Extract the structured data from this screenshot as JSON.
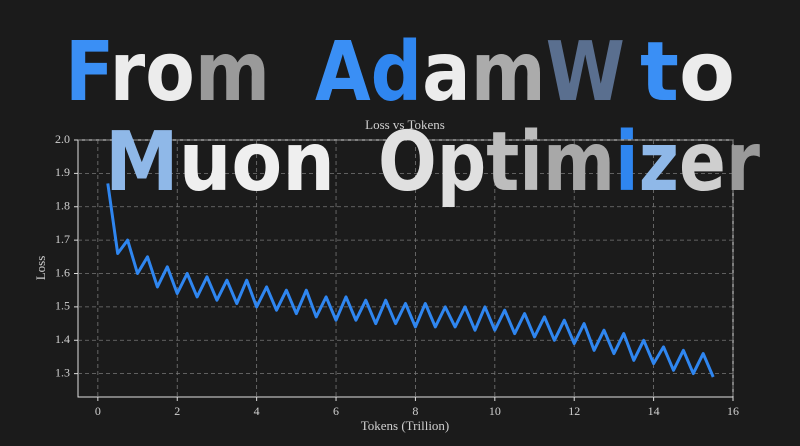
{
  "headline": [
    [
      [
        {
          "text": "F",
          "color": "#3a8ff5"
        },
        {
          "text": "ro",
          "color": "#ececec"
        },
        {
          "text": "m",
          "color": "#9a9a9a"
        }
      ],
      [
        {
          "text": "A",
          "color": "#3a8ff5"
        },
        {
          "text": "d",
          "color": "#2f86f0"
        },
        {
          "text": "a",
          "color": "#ececec"
        },
        {
          "text": "m",
          "color": "#ababab"
        },
        {
          "text": "W",
          "color": "#5a6f8f"
        }
      ],
      [
        {
          "text": "t",
          "color": "#3a8ff5"
        },
        {
          "text": "o",
          "color": "#ececec"
        }
      ]
    ],
    [
      [
        {
          "text": "M",
          "color": "#8fb8e8"
        },
        {
          "text": "uon",
          "color": "#efefef"
        }
      ],
      [
        {
          "text": "Op",
          "color": "#e0e0e0"
        },
        {
          "text": "ti",
          "color": "#bdbdbd"
        },
        {
          "text": "m",
          "color": "#a8a8a8"
        },
        {
          "text": "i",
          "color": "#2f86f0"
        },
        {
          "text": "z",
          "color": "#8fb8e8"
        },
        {
          "text": "e",
          "color": "#cfcfcf"
        },
        {
          "text": "r",
          "color": "#9a9a9a"
        }
      ]
    ]
  ],
  "chart_data": {
    "type": "line",
    "title": "Loss vs Tokens",
    "x_label": "Tokens (Trillion)",
    "y_label": "Loss",
    "x": [
      0.25,
      0.5,
      0.75,
      1,
      1.25,
      1.5,
      1.75,
      2,
      2.25,
      2.5,
      2.75,
      3,
      3.25,
      3.5,
      3.75,
      4,
      4.25,
      4.5,
      4.75,
      5,
      5.25,
      5.5,
      5.75,
      6,
      6.25,
      6.5,
      6.75,
      7,
      7.25,
      7.5,
      7.75,
      8,
      8.25,
      8.5,
      8.75,
      9,
      9.25,
      9.5,
      9.75,
      10,
      10.25,
      10.5,
      10.75,
      11,
      11.25,
      11.5,
      11.75,
      12,
      12.25,
      12.5,
      12.75,
      13,
      13.25,
      13.5,
      13.75,
      14,
      14.25,
      14.5,
      14.75,
      15,
      15.25,
      15.5
    ],
    "values": [
      1.87,
      1.66,
      1.7,
      1.6,
      1.65,
      1.56,
      1.62,
      1.54,
      1.6,
      1.53,
      1.59,
      1.52,
      1.58,
      1.51,
      1.58,
      1.5,
      1.56,
      1.49,
      1.55,
      1.48,
      1.55,
      1.47,
      1.53,
      1.46,
      1.53,
      1.46,
      1.52,
      1.45,
      1.52,
      1.45,
      1.51,
      1.44,
      1.51,
      1.44,
      1.5,
      1.44,
      1.5,
      1.43,
      1.5,
      1.43,
      1.49,
      1.42,
      1.48,
      1.41,
      1.47,
      1.4,
      1.46,
      1.39,
      1.45,
      1.37,
      1.43,
      1.36,
      1.42,
      1.34,
      1.4,
      1.33,
      1.38,
      1.31,
      1.37,
      1.3,
      1.36,
      1.29
    ],
    "color": "#2f86f0",
    "xlim": [
      -0.5,
      16
    ],
    "ylim": [
      1.23,
      2.0
    ],
    "xticks": [
      0,
      2,
      4,
      6,
      8,
      10,
      12,
      14,
      16
    ],
    "yticks": [
      1.3,
      1.4,
      1.5,
      1.6,
      1.7,
      1.8,
      1.9,
      {
        "value": 2,
        "label": "2.0"
      }
    ],
    "grid": true
  }
}
